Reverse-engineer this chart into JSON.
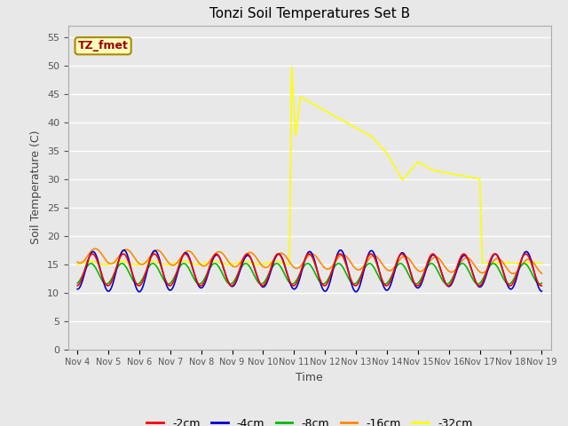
{
  "title": "Tonzi Soil Temperatures Set B",
  "xlabel": "Time",
  "ylabel": "Soil Temperature (C)",
  "ylim": [
    0,
    57
  ],
  "yticks": [
    0,
    5,
    10,
    15,
    20,
    25,
    30,
    35,
    40,
    45,
    50,
    55
  ],
  "plot_bg_color": "#e8e8e8",
  "fig_bg_color": "#e8e8e8",
  "legend_entries": [
    "-2cm",
    "-4cm",
    "-8cm",
    "-16cm",
    "-32cm"
  ],
  "legend_colors": [
    "#ff0000",
    "#0000cc",
    "#00bb00",
    "#ff8800",
    "#ffff00"
  ],
  "annotation_text": "TZ_fmet",
  "annotation_color": "#990000",
  "annotation_bg": "#ffffbb",
  "annotation_border": "#aa8800",
  "x_tick_labels": [
    "Nov 4",
    "Nov 5",
    "Nov 6",
    "Nov 7",
    "Nov 8",
    "Nov 9",
    "Nov 10",
    "Nov 11",
    "Nov 12",
    "Nov 13",
    "Nov 14",
    "Nov 15",
    "Nov 16",
    "Nov 17",
    "Nov 18",
    "Nov 19"
  ]
}
